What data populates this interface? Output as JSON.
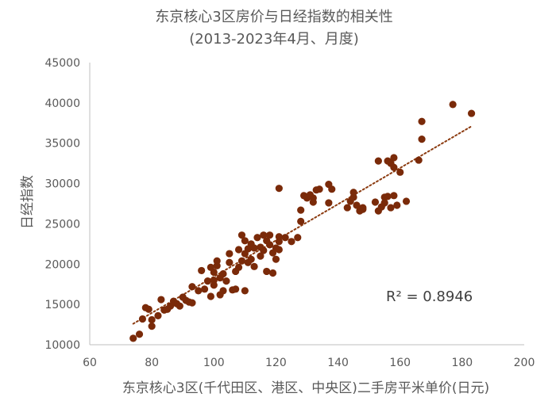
{
  "chart_data": {
    "type": "scatter",
    "title": "东京核心3区房价与日经指数的相关性",
    "subtitle": "(2013-2023年4月、月度)",
    "xlabel": "东京核心3区(千代田区、港区、中央区)二手房平米单价(日元)",
    "ylabel": "日经指数",
    "xlim": [
      60,
      200
    ],
    "ylim": [
      10000,
      45000
    ],
    "xticks": [
      "60",
      "80",
      "100",
      "120",
      "140",
      "160",
      "180",
      "200"
    ],
    "yticks": [
      "10000",
      "15000",
      "20000",
      "25000",
      "30000",
      "35000",
      "40000",
      "45000"
    ],
    "grid": false,
    "legend": "none",
    "annotation": "R² = 0.8946",
    "trendline": {
      "type": "linear",
      "style": "dotted",
      "x": [
        74,
        183
      ],
      "y": [
        12600,
        37100
      ]
    },
    "colors": {
      "points": "#7a2a09",
      "trendline": "#8b3a0f",
      "axis": "#bfbfbf",
      "text": "#595959"
    },
    "series": [
      {
        "points": [
          [
            74,
            10800
          ],
          [
            76,
            11300
          ],
          [
            77,
            13200
          ],
          [
            78,
            14600
          ],
          [
            79,
            14400
          ],
          [
            80,
            13100
          ],
          [
            80,
            12300
          ],
          [
            82,
            13600
          ],
          [
            83,
            15600
          ],
          [
            84,
            14300
          ],
          [
            85,
            14400
          ],
          [
            86,
            14800
          ],
          [
            87,
            15400
          ],
          [
            88,
            15100
          ],
          [
            89,
            14800
          ],
          [
            90,
            15900
          ],
          [
            91,
            15500
          ],
          [
            92,
            15300
          ],
          [
            93,
            15200
          ],
          [
            93,
            17200
          ],
          [
            95,
            16700
          ],
          [
            96,
            19200
          ],
          [
            97,
            16900
          ],
          [
            98,
            17900
          ],
          [
            99,
            19600
          ],
          [
            99,
            16000
          ],
          [
            100,
            18000
          ],
          [
            100,
            17400
          ],
          [
            100,
            19000
          ],
          [
            101,
            19800
          ],
          [
            101,
            20400
          ],
          [
            102,
            16200
          ],
          [
            102,
            18300
          ],
          [
            103,
            18800
          ],
          [
            103,
            16700
          ],
          [
            104,
            17900
          ],
          [
            105,
            20200
          ],
          [
            105,
            21300
          ],
          [
            106,
            16800
          ],
          [
            107,
            19100
          ],
          [
            107,
            16900
          ],
          [
            108,
            21800
          ],
          [
            108,
            19600
          ],
          [
            109,
            23600
          ],
          [
            109,
            20400
          ],
          [
            110,
            16700
          ],
          [
            110,
            22900
          ],
          [
            110,
            21300
          ],
          [
            111,
            21900
          ],
          [
            111,
            20200
          ],
          [
            112,
            22500
          ],
          [
            112,
            20600
          ],
          [
            113,
            19700
          ],
          [
            113,
            22000
          ],
          [
            114,
            23300
          ],
          [
            115,
            22100
          ],
          [
            115,
            21000
          ],
          [
            116,
            23600
          ],
          [
            116,
            21700
          ],
          [
            117,
            22900
          ],
          [
            117,
            19100
          ],
          [
            118,
            23600
          ],
          [
            118,
            22400
          ],
          [
            119,
            21400
          ],
          [
            119,
            18900
          ],
          [
            120,
            22000
          ],
          [
            120,
            20600
          ],
          [
            121,
            29400
          ],
          [
            121,
            22800
          ],
          [
            121,
            21800
          ],
          [
            121,
            23400
          ],
          [
            123,
            23300
          ],
          [
            125,
            22800
          ],
          [
            127,
            23300
          ],
          [
            128,
            25300
          ],
          [
            128,
            26700
          ],
          [
            129,
            28500
          ],
          [
            130,
            28200
          ],
          [
            131,
            28600
          ],
          [
            132,
            27700
          ],
          [
            132,
            28200
          ],
          [
            133,
            29200
          ],
          [
            134,
            29300
          ],
          [
            137,
            27600
          ],
          [
            137,
            29900
          ],
          [
            138,
            29300
          ],
          [
            143,
            27000
          ],
          [
            144,
            27800
          ],
          [
            145,
            28300
          ],
          [
            145,
            28900
          ],
          [
            146,
            27300
          ],
          [
            147,
            26600
          ],
          [
            148,
            26800
          ],
          [
            148,
            27000
          ],
          [
            152,
            27700
          ],
          [
            153,
            32800
          ],
          [
            153,
            26600
          ],
          [
            154,
            27100
          ],
          [
            155,
            27600
          ],
          [
            155,
            28300
          ],
          [
            156,
            32800
          ],
          [
            156,
            28400
          ],
          [
            157,
            32500
          ],
          [
            157,
            27000
          ],
          [
            158,
            33200
          ],
          [
            158,
            32000
          ],
          [
            158,
            28500
          ],
          [
            159,
            27300
          ],
          [
            160,
            31400
          ],
          [
            162,
            27800
          ],
          [
            166,
            32900
          ],
          [
            167,
            35500
          ],
          [
            167,
            37700
          ],
          [
            177,
            39800
          ],
          [
            183,
            38700
          ]
        ]
      }
    ]
  }
}
